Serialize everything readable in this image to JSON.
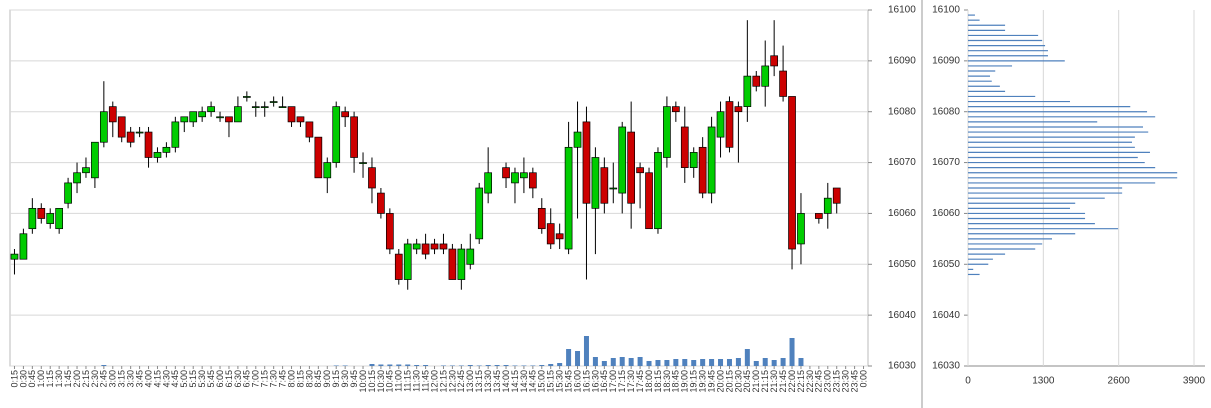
{
  "chart_data": [
    {
      "type": "candlestick",
      "categories": [
        "0:15",
        "0:30",
        "0:45",
        "1:00",
        "1:15",
        "1:30",
        "1:45",
        "2:00",
        "2:15",
        "2:30",
        "2:45",
        "3:00",
        "3:15",
        "3:30",
        "3:45",
        "4:00",
        "4:15",
        "4:30",
        "4:45",
        "5:00",
        "5:15",
        "5:30",
        "5:45",
        "6:00",
        "6:15",
        "6:30",
        "6:45",
        "7:00",
        "7:15",
        "7:30",
        "7:45",
        "8:00",
        "8:15",
        "8:30",
        "8:45",
        "9:00",
        "9:15",
        "9:30",
        "9:45",
        "10:00",
        "10:15",
        "10:30",
        "10:45",
        "11:00",
        "11:15",
        "11:30",
        "11:45",
        "12:00",
        "12:15",
        "12:30",
        "12:45",
        "13:00",
        "13:15",
        "13:30",
        "13:45",
        "14:00",
        "14:15",
        "14:30",
        "14:45",
        "15:00",
        "15:15",
        "15:30",
        "15:45",
        "16:00",
        "16:15",
        "16:30",
        "16:45",
        "17:00",
        "17:15",
        "17:30",
        "17:45",
        "18:00",
        "18:15",
        "18:30",
        "18:45",
        "19:00",
        "19:15",
        "19:30",
        "19:45",
        "20:00",
        "20:15",
        "20:30",
        "20:45",
        "21:00",
        "21:15",
        "21:30",
        "21:45",
        "22:00",
        "22:15",
        "22:30",
        "22:45",
        "23:00",
        "23:15",
        "23:30",
        "23:45",
        "0:00"
      ],
      "open": [
        16051,
        16051,
        16057,
        16061,
        16058,
        16057,
        16062,
        16066,
        16068,
        16067,
        16074,
        16081,
        16079,
        16076,
        16076,
        16076,
        16071,
        16072,
        16073,
        16078,
        16078,
        16079,
        16080,
        16079,
        16079,
        16078,
        16083,
        16081,
        16081,
        16082,
        16081,
        16081,
        16079,
        16078,
        16075,
        16067,
        16070,
        16080,
        16079,
        16070,
        16069,
        16064,
        16060,
        16052,
        16047,
        16053,
        16054,
        16054,
        16054,
        16053,
        16047,
        16050,
        16055,
        16064,
        null,
        16069,
        16066,
        16067,
        16068,
        16061,
        16058,
        16056,
        16053,
        16073,
        16078,
        16061,
        16069,
        16065,
        16064,
        16076,
        16069,
        16068,
        16057,
        16071,
        16081,
        16077,
        16069,
        16073,
        16064,
        16075,
        16082,
        16081,
        16081,
        16087,
        16085,
        16091,
        16088,
        16083,
        16054,
        null,
        16060,
        16060,
        16065,
        null,
        null,
        null
      ],
      "high": [
        16053,
        16057,
        16063,
        16062,
        16061,
        16061,
        16067,
        16070,
        16071,
        16074,
        16086,
        16082,
        16079,
        16077,
        16077,
        16077,
        16073,
        16074,
        16079,
        16079,
        16080,
        16081,
        16082,
        16080,
        16079,
        16083,
        16084,
        16082,
        16082,
        16083,
        16083,
        16081,
        16079,
        16078,
        16075,
        16071,
        16082,
        16081,
        16080,
        16072,
        16071,
        16065,
        16061,
        16053,
        16055,
        16055,
        16056,
        16055,
        16056,
        16054,
        16054,
        16056,
        16066,
        16073,
        null,
        16070,
        16069,
        16071,
        16069,
        16063,
        16061,
        16058,
        16078,
        16082,
        16081,
        16073,
        16071,
        16070,
        16078,
        16082,
        16070,
        16069,
        16073,
        16083,
        16082,
        16081,
        16073,
        16075,
        16079,
        16082,
        16083,
        16082,
        16098,
        16088,
        16094,
        16098,
        16093,
        16083,
        16064,
        null,
        16060,
        16066,
        16065,
        null,
        null,
        null
      ],
      "low": [
        16048,
        16051,
        16056,
        16058,
        16057,
        16056,
        16061,
        16064,
        16067,
        16065,
        16073,
        16075,
        16074,
        16073,
        16075,
        16069,
        16070,
        16071,
        16072,
        16076,
        16077,
        16078,
        16079,
        16078,
        16075,
        16078,
        16082,
        16079,
        16079,
        16081,
        16081,
        16077,
        16077,
        16074,
        16067,
        16064,
        16069,
        16077,
        16068,
        16067,
        16062,
        16059,
        16052,
        16046,
        16045,
        16052,
        16051,
        16052,
        16052,
        16047,
        16045,
        16049,
        16054,
        16062,
        null,
        16065,
        16062,
        16064,
        16063,
        16056,
        16053,
        16053,
        16052,
        16059,
        16047,
        16052,
        16060,
        16062,
        16060,
        16057,
        16061,
        16057,
        16056,
        16069,
        16078,
        16066,
        16067,
        16063,
        16062,
        16071,
        16072,
        16070,
        16078,
        16084,
        16081,
        16087,
        16082,
        16049,
        16050,
        null,
        16058,
        16057,
        16060,
        null,
        null,
        null
      ],
      "close": [
        16052,
        16056,
        16061,
        16059,
        16060,
        16061,
        16066,
        16068,
        16069,
        16074,
        16080,
        16078,
        16075,
        16074,
        16076,
        16071,
        16072,
        16073,
        16078,
        16079,
        16080,
        16080,
        16081,
        16079,
        16078,
        16081,
        16083,
        16081,
        16081,
        16082,
        16081,
        16078,
        16078,
        16075,
        16067,
        16070,
        16081,
        16079,
        16071,
        16070,
        16065,
        16060,
        16053,
        16047,
        16054,
        16054,
        16052,
        16053,
        16053,
        16047,
        16053,
        16053,
        16065,
        16068,
        null,
        16067,
        16068,
        16068,
        16065,
        16057,
        16054,
        16055,
        16073,
        16076,
        16062,
        16071,
        16062,
        16065,
        16077,
        16062,
        16068,
        16057,
        16072,
        16081,
        16080,
        16069,
        16072,
        16064,
        16077,
        16080,
        16073,
        16080,
        16087,
        16085,
        16089,
        16089,
        16083,
        16053,
        16060,
        null,
        16059,
        16063,
        16062,
        null,
        null,
        null
      ],
      "volume": [
        0,
        0,
        0,
        0,
        0,
        0,
        0,
        0,
        0,
        0,
        100,
        0,
        0,
        0,
        0,
        0,
        0,
        0,
        0,
        0,
        0,
        0,
        0,
        0,
        0,
        0,
        0,
        0,
        0,
        0,
        0,
        0,
        0,
        0,
        0,
        0,
        50,
        50,
        0,
        0,
        200,
        150,
        150,
        150,
        150,
        100,
        100,
        0,
        50,
        50,
        50,
        100,
        50,
        100,
        100,
        100,
        50,
        50,
        50,
        100,
        200,
        300,
        1700,
        1500,
        3000,
        900,
        500,
        800,
        900,
        800,
        900,
        500,
        600,
        600,
        700,
        700,
        600,
        700,
        700,
        700,
        700,
        800,
        1700,
        500,
        800,
        600,
        800,
        2800,
        800,
        0,
        0,
        0,
        0,
        0,
        0,
        0
      ],
      "up_color": "#00cc00",
      "down_color": "#cc0000",
      "volume_color": "#4f81bd",
      "ylim": [
        16030,
        16100
      ],
      "yticks": [
        16030,
        16040,
        16050,
        16060,
        16070,
        16080,
        16090,
        16100
      ],
      "grid": true
    },
    {
      "type": "volume-profile",
      "levels": [
        16099,
        16098,
        16097,
        16096,
        16095,
        16094,
        16093,
        16092,
        16091,
        16090,
        16089,
        16088,
        16087,
        16086,
        16085,
        16084,
        16083,
        16082,
        16081,
        16080,
        16079,
        16078,
        16077,
        16076,
        16075,
        16074,
        16073,
        16072,
        16071,
        16070,
        16069,
        16068,
        16067,
        16066,
        16065,
        16064,
        16063,
        16062,
        16061,
        16060,
        16059,
        16058,
        16057,
        16056,
        16055,
        16054,
        16053,
        16052,
        16051,
        16050,
        16049,
        16048
      ],
      "values": [
        120,
        200,
        640,
        640,
        1210,
        1280,
        1330,
        1380,
        1380,
        1670,
        760,
        470,
        380,
        410,
        550,
        640,
        1160,
        1760,
        2800,
        3090,
        3230,
        2230,
        3020,
        3110,
        2880,
        2830,
        2880,
        3140,
        2930,
        3050,
        3230,
        3610,
        3610,
        3230,
        2660,
        2660,
        2360,
        1850,
        1760,
        2020,
        2020,
        2190,
        2590,
        1850,
        1450,
        1280,
        1160,
        640,
        430,
        350,
        90,
        200
      ],
      "color": "#4f81bd",
      "xlim": [
        0,
        3900
      ],
      "xticks": [
        0,
        1300,
        2600,
        3900
      ],
      "ylim": [
        16030,
        16100
      ],
      "yticks": [
        16030,
        16040,
        16050,
        16060,
        16070,
        16080,
        16090,
        16100
      ],
      "grid": true
    }
  ]
}
